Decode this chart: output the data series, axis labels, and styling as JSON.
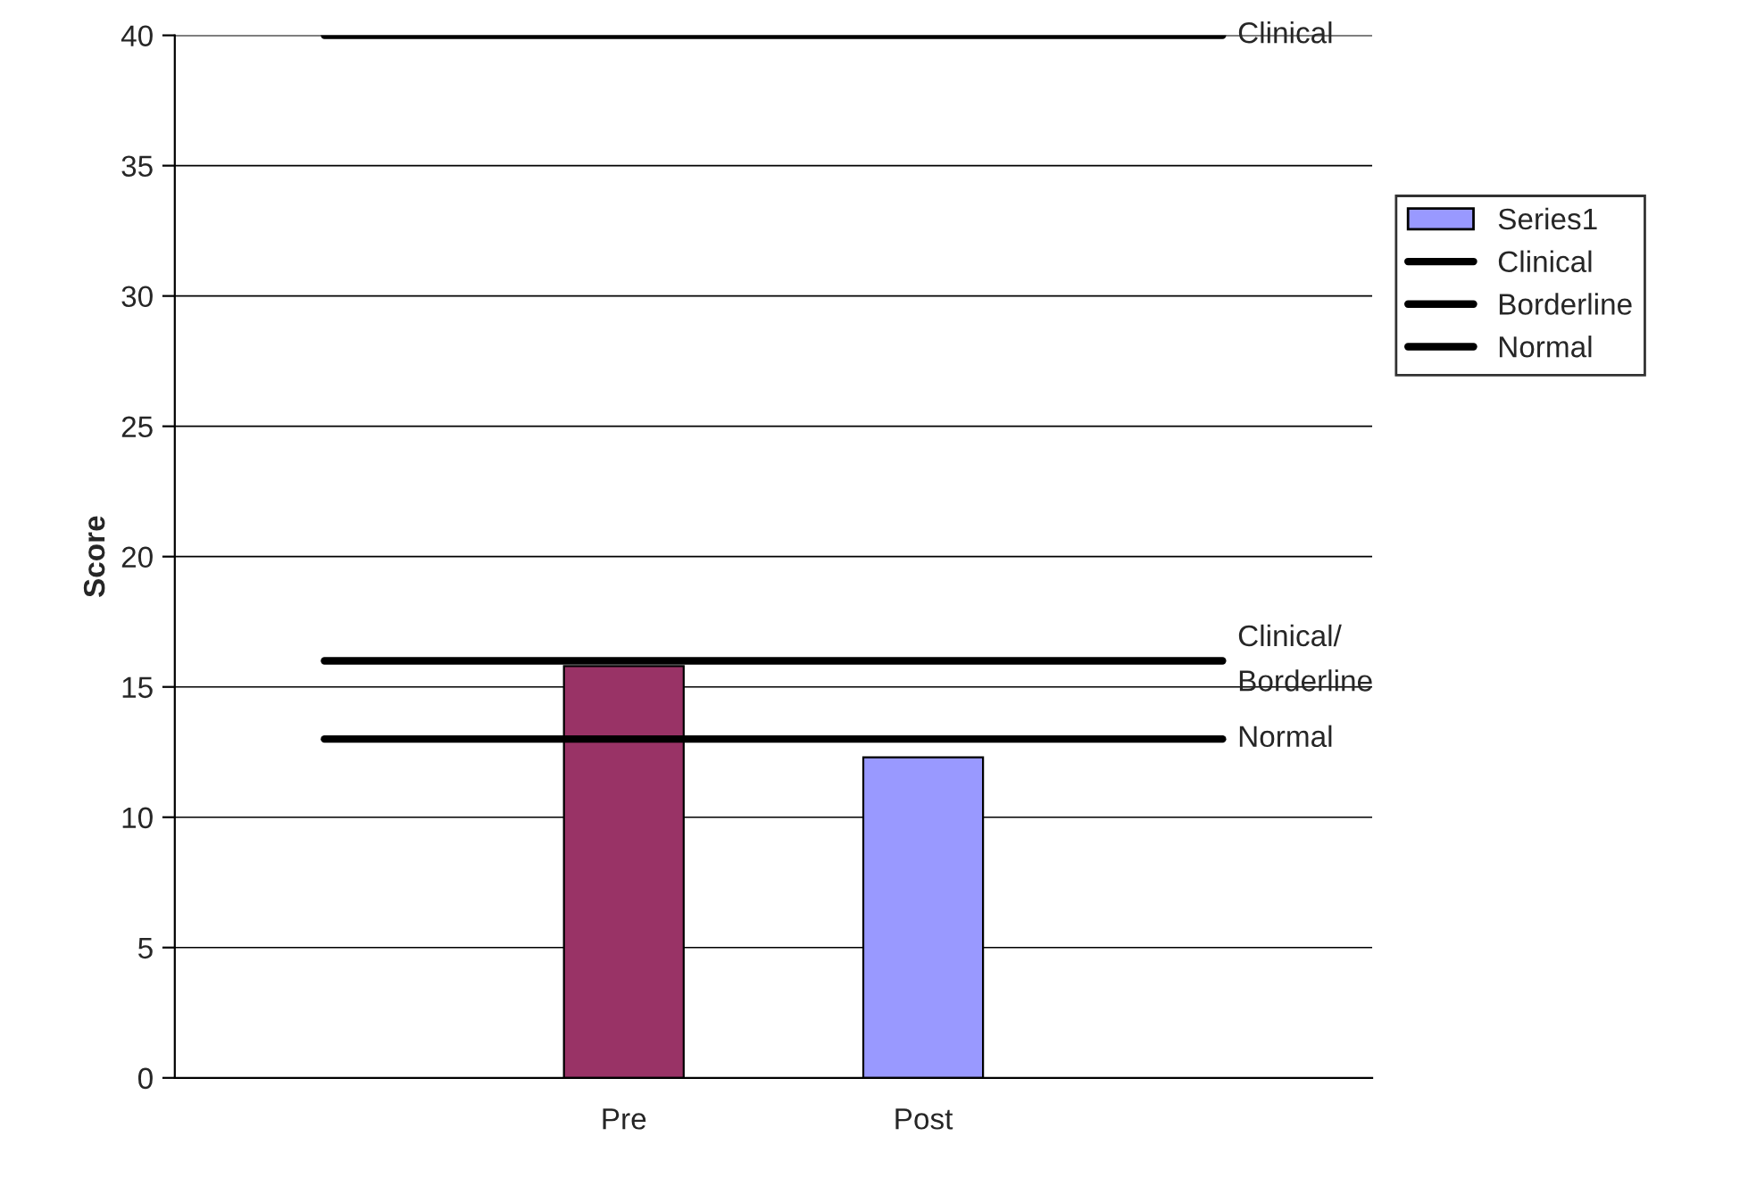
{
  "chart_data": {
    "type": "bar",
    "ylabel": "Score",
    "categories": [
      null,
      "Pre",
      "Post",
      null
    ],
    "series": [
      {
        "name": "Series1",
        "color": "#9999ff",
        "colors": [
          "#9999ff",
          "#993366",
          "#9999ff",
          "#9999ff"
        ],
        "values": [
          null,
          15.8,
          12.3,
          null
        ]
      },
      {
        "name": "Clinical",
        "type": "line",
        "color": "#000000",
        "values": [
          40,
          40,
          40,
          40
        ]
      },
      {
        "name": "Borderline",
        "type": "line",
        "color": "#000000",
        "values": [
          16,
          16,
          16,
          16
        ]
      },
      {
        "name": "Normal",
        "type": "line",
        "color": "#000000",
        "values": [
          13,
          13,
          13,
          13
        ]
      }
    ],
    "annotations": [
      "Clinical",
      "Clinical/\nBorderline",
      "Normal"
    ],
    "ylim": [
      0,
      40
    ],
    "yticks": [
      0,
      5,
      10,
      15,
      20,
      25,
      30,
      35,
      40
    ],
    "grid": "y",
    "legend": "right",
    "marker": "none",
    "line_style": "solid"
  }
}
